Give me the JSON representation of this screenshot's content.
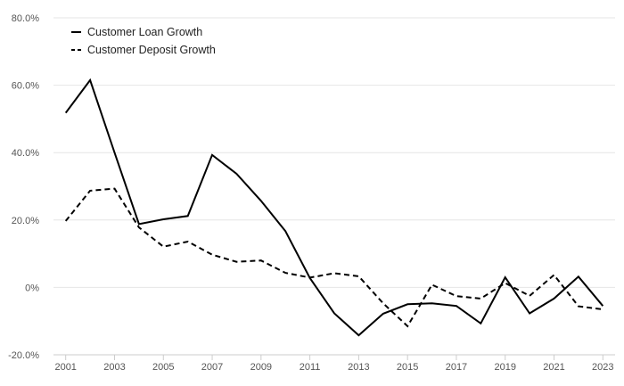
{
  "chart_data": {
    "type": "line",
    "x": [
      2001,
      2002,
      2003,
      2004,
      2005,
      2006,
      2007,
      2008,
      2009,
      2010,
      2011,
      2012,
      2013,
      2014,
      2015,
      2016,
      2017,
      2018,
      2019,
      2020,
      2021,
      2022,
      2023
    ],
    "x_tick_labels": [
      "2001",
      "2003",
      "2005",
      "2007",
      "2009",
      "2011",
      "2013",
      "2015",
      "2017",
      "2019",
      "2021",
      "2023"
    ],
    "x_ticks": [
      2001,
      2003,
      2005,
      2007,
      2009,
      2011,
      2013,
      2015,
      2017,
      2019,
      2021,
      2023
    ],
    "xlim": [
      2000.5,
      2023.5
    ],
    "ylim": [
      -20,
      80
    ],
    "y_ticks": [
      -20,
      0,
      20,
      40,
      60,
      80
    ],
    "y_tick_labels": [
      "-20.0%",
      "0%",
      "20.0%",
      "40.0%",
      "60.0%",
      "80.0%"
    ],
    "grid": true,
    "legend_position": "top-left",
    "series": [
      {
        "name": "Customer Loan Growth",
        "line_style": "solid",
        "color": "#000000",
        "values": [
          51.8,
          61.5,
          40.0,
          18.8,
          20.2,
          21.2,
          39.3,
          33.7,
          25.7,
          16.7,
          2.8,
          -7.7,
          -14.2,
          -7.8,
          -5.0,
          -4.7,
          -5.5,
          -10.7,
          3.0,
          -7.7,
          -3.3,
          3.2,
          -5.5
        ]
      },
      {
        "name": "Customer Deposit Growth",
        "line_style": "dashed",
        "color": "#000000",
        "values": [
          19.7,
          28.7,
          29.3,
          17.8,
          12.1,
          13.6,
          9.7,
          7.6,
          8.0,
          4.3,
          2.9,
          4.2,
          3.3,
          -4.7,
          -11.5,
          0.8,
          -2.6,
          -3.3,
          1.3,
          -2.5,
          3.7,
          -5.6,
          -6.5
        ]
      }
    ]
  }
}
